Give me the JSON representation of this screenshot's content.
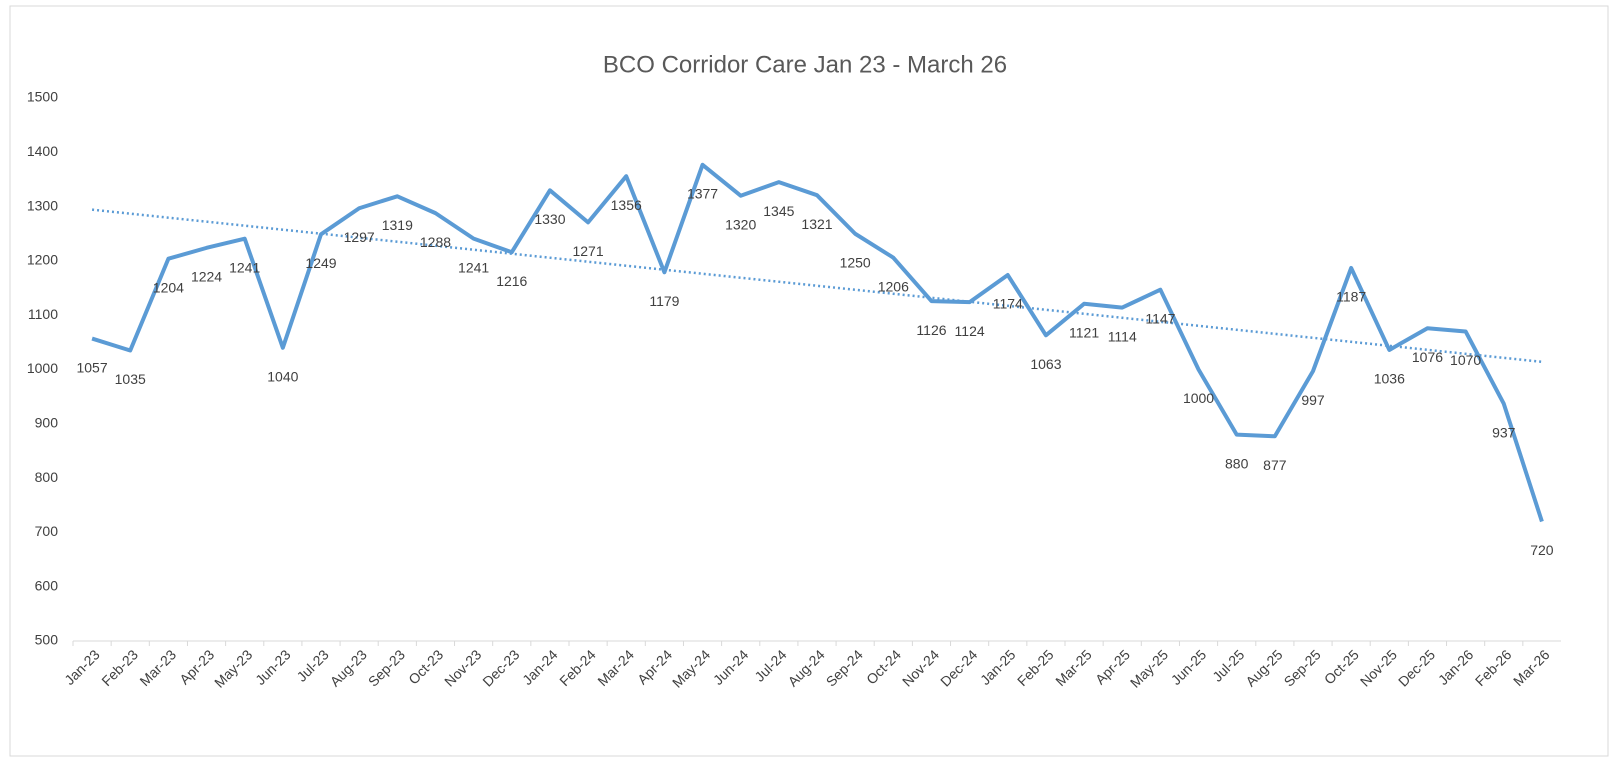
{
  "chart_data": {
    "type": "line",
    "title": "BCO Corridor Care Jan 23 - March 26",
    "categories": [
      "Jan-23",
      "Feb-23",
      "Mar-23",
      "Apr-23",
      "May-23",
      "Jun-23",
      "Jul-23",
      "Aug-23",
      "Sep-23",
      "Oct-23",
      "Nov-23",
      "Dec-23",
      "Jan-24",
      "Feb-24",
      "Mar-24",
      "Apr-24",
      "May-24",
      "Jun-24",
      "Jul-24",
      "Aug-24",
      "Sep-24",
      "Oct-24",
      "Nov-24",
      "Dec-24",
      "Jan-25",
      "Feb-25",
      "Mar-25",
      "Apr-25",
      "May-25",
      "Jun-25",
      "Jul-25",
      "Aug-25",
      "Sep-25",
      "Oct-25",
      "Nov-25",
      "Dec-25",
      "Jan-26",
      "Feb-26",
      "Mar-26"
    ],
    "values": [
      1057,
      1035,
      1204,
      1224,
      1241,
      1040,
      1249,
      1297,
      1319,
      1288,
      1241,
      1216,
      1330,
      1271,
      1356,
      1179,
      1377,
      1320,
      1345,
      1321,
      1250,
      1206,
      1126,
      1124,
      1174,
      1063,
      1121,
      1114,
      1147,
      1000,
      880,
      877,
      997,
      1187,
      1036,
      1076,
      1070,
      937,
      720
    ],
    "color": "#5b9bd5",
    "trendline": true,
    "data_labels": true,
    "ylim": [
      500,
      1500
    ],
    "yticks": [
      500,
      600,
      700,
      800,
      900,
      1000,
      1100,
      1200,
      1300,
      1400,
      1500
    ],
    "grid": false
  }
}
